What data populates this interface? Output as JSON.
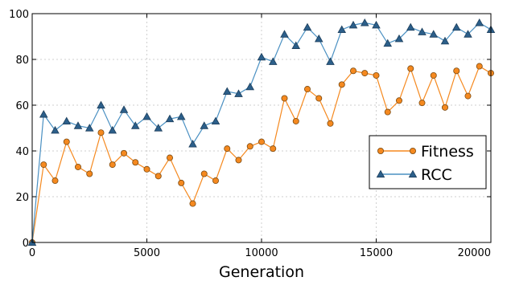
{
  "chart_data": {
    "type": "line",
    "title": "",
    "xlabel": "Generation",
    "ylabel": "",
    "xlim": [
      0,
      20000
    ],
    "ylim": [
      0,
      100
    ],
    "x_ticks": [
      0,
      5000,
      10000,
      15000,
      20000
    ],
    "y_ticks": [
      0,
      20,
      40,
      60,
      80,
      100
    ],
    "grid": true,
    "legend_position": "center-right",
    "x": [
      0,
      500,
      1000,
      1500,
      2000,
      2500,
      3000,
      3500,
      4000,
      4500,
      5000,
      5500,
      6000,
      6500,
      7000,
      7500,
      8000,
      8500,
      9000,
      9500,
      10000,
      10500,
      11000,
      11500,
      12000,
      12500,
      13000,
      13500,
      14000,
      14500,
      15000,
      15500,
      16000,
      16500,
      17000,
      17500,
      18000,
      18500,
      19000,
      19500,
      20000
    ],
    "series": [
      {
        "name": "Fitness",
        "color": "#f5891f",
        "marker": "circle",
        "values": [
          0,
          34,
          27,
          44,
          33,
          30,
          48,
          34,
          39,
          35,
          32,
          29,
          37,
          26,
          17,
          30,
          27,
          41,
          36,
          42,
          44,
          41,
          63,
          53,
          67,
          63,
          52,
          69,
          75,
          74,
          73,
          57,
          62,
          76,
          61,
          73,
          59,
          75,
          64,
          77,
          74
        ]
      },
      {
        "name": "RCC",
        "color": "#4a90c2",
        "marker": "triangle",
        "values": [
          0,
          56,
          49,
          53,
          51,
          50,
          60,
          49,
          58,
          51,
          55,
          50,
          54,
          55,
          43,
          51,
          53,
          66,
          65,
          68,
          81,
          79,
          91,
          86,
          94,
          89,
          79,
          93,
          95,
          96,
          95,
          87,
          89,
          94,
          92,
          91,
          88,
          94,
          91,
          96,
          93
        ]
      }
    ]
  }
}
